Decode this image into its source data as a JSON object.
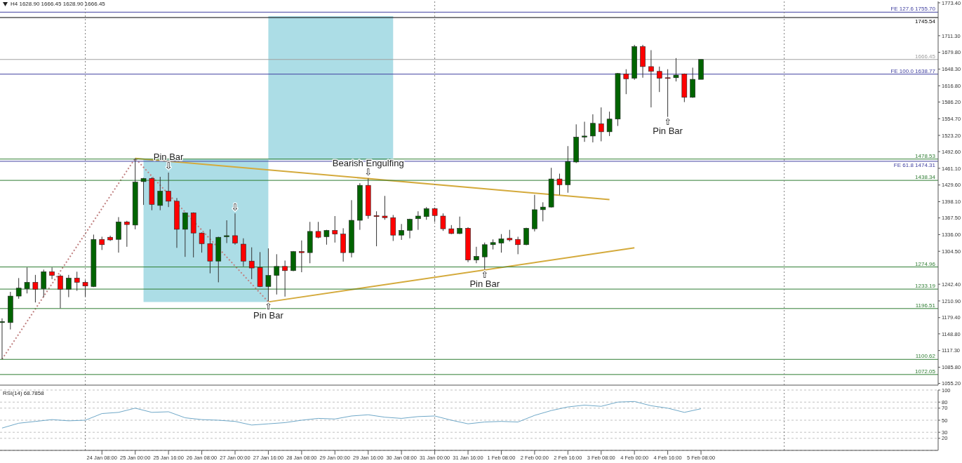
{
  "chart_data": [
    {
      "type": "candlestick",
      "title": "H4  1628.90 1666.45 1628.90 1666.45",
      "x": [
        "--01-22T08:00",
        "--01-22T12:00",
        "--01-22T16:00",
        "--01-22T20:00",
        "--01-23T00:00",
        "--01-23T04:00",
        "--01-23T08:00",
        "--01-23T12:00",
        "--01-23T16:00",
        "--01-23T20:00",
        "--01-24T00:00",
        "--01-24T04:00",
        "--01-24T08:00",
        "--01-24T12:00",
        "--01-24T16:00",
        "--01-24T20:00",
        "--01-25T00:00",
        "--01-25T04:00",
        "--01-25T08:00",
        "--01-25T12:00",
        "--01-25T16:00",
        "--01-25T20:00",
        "--01-26T00:00",
        "--01-26T04:00",
        "--01-26T08:00",
        "--01-26T12:00",
        "--01-26T16:00",
        "--01-26T20:00",
        "--01-27T00:00",
        "--01-27T04:00",
        "--01-27T08:00",
        "--01-27T12:00",
        "--01-27T16:00",
        "--01-27T20:00",
        "--01-28T00:00",
        "--01-28T04:00",
        "--01-28T08:00",
        "--01-28T12:00",
        "--01-28T16:00",
        "--01-28T20:00",
        "--01-29T00:00",
        "--01-29T04:00",
        "--01-29T08:00",
        "--01-29T12:00",
        "--01-29T16:00",
        "--01-29T20:00",
        "--01-30T00:00",
        "--01-30T04:00",
        "--01-30T08:00",
        "--01-30T12:00",
        "--01-30T16:00",
        "--01-30T20:00",
        "--01-31T00:00",
        "--01-31T04:00",
        "--01-31T08:00",
        "--01-31T12:00",
        "--01-31T16:00",
        "--01-31T20:00",
        "--02-01T00:00",
        "--02-01T04:00",
        "--02-01T08:00",
        "--02-01T12:00",
        "--02-01T16:00",
        "--02-01T20:00",
        "--02-02T00:00",
        "--02-02T04:00",
        "--02-02T08:00",
        "--02-02T12:00",
        "--02-02T16:00",
        "--02-02T20:00",
        "--02-03T00:00",
        "--02-03T04:00",
        "--02-03T08:00",
        "--02-03T12:00",
        "--02-03T16:00",
        "--02-03T20:00",
        "--02-04T00:00",
        "--02-04T04:00",
        "--02-04T08:00",
        "--02-04T12:00",
        "--02-04T16:00",
        "--02-04T20:00",
        "--02-05T00:00",
        "--02-05T04:00",
        "--02-05T08:00"
      ],
      "ohlc": [
        [
          1170,
          1178,
          1101,
          1172
        ],
        [
          1170,
          1228,
          1157,
          1220
        ],
        [
          1220,
          1254,
          1215,
          1235
        ],
        [
          1234,
          1274,
          1225,
          1246
        ],
        [
          1246,
          1260,
          1208,
          1233
        ],
        [
          1234,
          1270,
          1218,
          1266
        ],
        [
          1266,
          1274,
          1252,
          1259
        ],
        [
          1258,
          1261,
          1197,
          1233
        ],
        [
          1233,
          1260,
          1218,
          1254
        ],
        [
          1254,
          1266,
          1230,
          1246
        ],
        [
          1246,
          1250,
          1219,
          1239
        ],
        [
          1238,
          1336,
          1237,
          1327
        ],
        [
          1327,
          1332,
          1307,
          1317
        ],
        [
          1331,
          1334,
          1324,
          1326
        ],
        [
          1327,
          1369,
          1302,
          1360
        ],
        [
          1360,
          1362,
          1313,
          1355
        ],
        [
          1354,
          1480,
          1346,
          1435
        ],
        [
          1436,
          1443,
          1392,
          1442
        ],
        [
          1442,
          1444,
          1382,
          1393
        ],
        [
          1391,
          1445,
          1382,
          1418
        ],
        [
          1418,
          1453,
          1388,
          1399
        ],
        [
          1399,
          1405,
          1311,
          1346
        ],
        [
          1346,
          1378,
          1294,
          1377
        ],
        [
          1377,
          1378,
          1293,
          1339
        ],
        [
          1339,
          1340,
          1302,
          1319
        ],
        [
          1319,
          1346,
          1263,
          1286
        ],
        [
          1286,
          1332,
          1246,
          1331
        ],
        [
          1332,
          1363,
          1320,
          1334
        ],
        [
          1334,
          1376,
          1317,
          1320
        ],
        [
          1318,
          1329,
          1276,
          1286
        ],
        [
          1286,
          1312,
          1252,
          1273
        ],
        [
          1274,
          1303,
          1237,
          1238
        ],
        [
          1238,
          1310,
          1210,
          1259
        ],
        [
          1259,
          1299,
          1223,
          1276
        ],
        [
          1276,
          1287,
          1219,
          1268
        ],
        [
          1268,
          1305,
          1267,
          1304
        ],
        [
          1304,
          1325,
          1265,
          1302
        ],
        [
          1302,
          1360,
          1282,
          1342
        ],
        [
          1342,
          1360,
          1329,
          1331
        ],
        [
          1332,
          1345,
          1317,
          1344
        ],
        [
          1344,
          1371,
          1321,
          1337
        ],
        [
          1337,
          1348,
          1285,
          1302
        ],
        [
          1302,
          1401,
          1293,
          1363
        ],
        [
          1363,
          1433,
          1345,
          1429
        ],
        [
          1429,
          1442,
          1366,
          1372
        ],
        [
          1372,
          1380,
          1314,
          1370
        ],
        [
          1371,
          1409,
          1364,
          1368
        ],
        [
          1368,
          1373,
          1324,
          1335
        ],
        [
          1335,
          1356,
          1326,
          1344
        ],
        [
          1344,
          1366,
          1329,
          1365
        ],
        [
          1366,
          1380,
          1345,
          1371
        ],
        [
          1370,
          1388,
          1364,
          1385
        ],
        [
          1385,
          1387,
          1360,
          1372
        ],
        [
          1371,
          1376,
          1343,
          1347
        ],
        [
          1347,
          1354,
          1337,
          1338
        ],
        [
          1338,
          1370,
          1337,
          1348
        ],
        [
          1348,
          1350,
          1284,
          1288
        ],
        [
          1288,
          1313,
          1282,
          1295
        ],
        [
          1294,
          1321,
          1270,
          1317
        ],
        [
          1317,
          1327,
          1308,
          1321
        ],
        [
          1320,
          1337,
          1302,
          1328
        ],
        [
          1329,
          1345,
          1323,
          1326
        ],
        [
          1327,
          1332,
          1299,
          1317
        ],
        [
          1317,
          1349,
          1316,
          1348
        ],
        [
          1347,
          1411,
          1342,
          1383
        ],
        [
          1383,
          1397,
          1361,
          1388
        ],
        [
          1388,
          1462,
          1387,
          1441
        ],
        [
          1441,
          1451,
          1411,
          1430
        ],
        [
          1430,
          1503,
          1415,
          1474
        ],
        [
          1473,
          1544,
          1471,
          1520
        ],
        [
          1520,
          1549,
          1511,
          1522
        ],
        [
          1522,
          1563,
          1510,
          1546
        ],
        [
          1545,
          1576,
          1512,
          1530
        ],
        [
          1530,
          1568,
          1522,
          1554
        ],
        [
          1554,
          1641,
          1541,
          1640
        ],
        [
          1639,
          1648,
          1601,
          1630
        ],
        [
          1631,
          1694,
          1628,
          1691
        ],
        [
          1691,
          1694,
          1632,
          1653
        ],
        [
          1653,
          1684,
          1576,
          1644
        ],
        [
          1644,
          1653,
          1605,
          1631
        ],
        [
          1632,
          1648,
          1558,
          1631
        ],
        [
          1632,
          1669,
          1625,
          1637
        ],
        [
          1639,
          1640,
          1586,
          1595
        ],
        [
          1595,
          1651,
          1594,
          1629
        ],
        [
          1628.9,
          1666.45,
          1628.9,
          1666.45
        ]
      ],
      "colors": [
        "#006400",
        "#006400",
        "#006400",
        "#006400",
        "#ff0000",
        "#006400",
        "#ff0000",
        "#ff0000",
        "#006400",
        "#ff0000",
        "#ff0000",
        "#006400",
        "#ff0000",
        "#ff0000",
        "#006400",
        "#ff0000",
        "#006400",
        "#006400",
        "#ff0000",
        "#006400",
        "#ff0000",
        "#ff0000",
        "#006400",
        "#ff0000",
        "#ff0000",
        "#ff0000",
        "#006400",
        "#006400",
        "#ff0000",
        "#ff0000",
        "#ff0000",
        "#ff0000",
        "#006400",
        "#006400",
        "#ff0000",
        "#006400",
        "#ff0000",
        "#006400",
        "#ff0000",
        "#006400",
        "#ff0000",
        "#ff0000",
        "#006400",
        "#006400",
        "#ff0000",
        "#ff0000",
        "#ff0000",
        "#ff0000",
        "#006400",
        "#006400",
        "#006400",
        "#006400",
        "#ff0000",
        "#ff0000",
        "#ff0000",
        "#006400",
        "#ff0000",
        "#006400",
        "#006400",
        "#006400",
        "#006400",
        "#ff0000",
        "#ff0000",
        "#006400",
        "#006400",
        "#006400",
        "#006400",
        "#ff0000",
        "#006400",
        "#006400",
        "#006400",
        "#006400",
        "#ff0000",
        "#006400",
        "#006400",
        "#ff0000",
        "#006400",
        "#ff0000",
        "#ff0000",
        "#ff0000",
        "#ff0000",
        "#006400",
        "#ff0000",
        "#006400",
        "#006400"
      ],
      "series": [
        {
          "type": "line",
          "x": [
            "--01-25T04:00",
            "--01-27T16:00"
          ],
          "values": [
            1477,
            1477
          ],
          "upper": [
            1477,
            1477
          ],
          "lower": [
            1209,
            1209
          ],
          "color": "#acdde6",
          "line_style": "solid"
        },
        {
          "type": "line",
          "x": [
            "--01-27T16:00",
            "--01-30T04:00"
          ],
          "values": [
            1747,
            1747
          ],
          "upper": [
            1747,
            1747
          ],
          "lower": [
            1477,
            1477
          ],
          "color": "#acdde6",
          "line_style": "solid"
        },
        {
          "type": "line",
          "x": [
            "--01-22T08:00",
            "--01-25T00:00",
            "--01-27T16:00"
          ],
          "values": [
            1101,
            1480,
            1209
          ],
          "color": "#c08080",
          "line_style": "dotted"
        },
        {
          "type": "line",
          "x": [
            "--01-25T00:00",
            "--02-03T12:00"
          ],
          "values": [
            1480,
            1402
          ],
          "color": "#d4aa3c",
          "line_style": "solid"
        },
        {
          "type": "line",
          "x": [
            "--01-27T16:00",
            "--02-04T00:00"
          ],
          "values": [
            1209,
            1311
          ],
          "color": "#d4aa3c",
          "line_style": "solid"
        }
      ],
      "xlim": [
        "--01-22T07:00",
        "--02-10T02:00"
      ],
      "ylim": [
        1052,
        1776
      ],
      "yticks": [
        {
          "value": 1773.4,
          "label": "1773.40"
        },
        {
          "value": 1711.3,
          "label": "1711.30"
        },
        {
          "value": 1679.8,
          "label": "1679.80"
        },
        {
          "value": 1648.3,
          "label": "1648.30"
        },
        {
          "value": 1616.8,
          "label": "1616.80"
        },
        {
          "value": 1586.2,
          "label": "1586.20"
        },
        {
          "value": 1554.7,
          "label": "1554.70"
        },
        {
          "value": 1523.2,
          "label": "1523.20"
        },
        {
          "value": 1492.6,
          "label": "1492.60"
        },
        {
          "value": 1461.1,
          "label": "1461.10"
        },
        {
          "value": 1429.6,
          "label": "1429.60"
        },
        {
          "value": 1398.1,
          "label": "1398.10"
        },
        {
          "value": 1367.5,
          "label": "1367.50"
        },
        {
          "value": 1336,
          "label": "1336.00"
        },
        {
          "value": 1304.5,
          "label": "1304.50"
        },
        {
          "value": 1242.4,
          "label": "1242.40"
        },
        {
          "value": 1210.9,
          "label": "1210.90"
        },
        {
          "value": 1179.4,
          "label": "1179.40"
        },
        {
          "value": 1148.8,
          "label": "1148.80"
        },
        {
          "value": 1117.3,
          "label": "1117.30"
        },
        {
          "value": 1085.8,
          "label": "1085.80"
        },
        {
          "value": 1055.2,
          "label": "1055.20"
        }
      ],
      "tick_labels": "y",
      "ref_lines": [
        {
          "axis": "y",
          "value": 1755.7,
          "label": "FE 127.6 1755.70",
          "color": "#4040a0"
        },
        {
          "axis": "y",
          "value": 1745.54,
          "label": "1745.54",
          "color": "#000000"
        },
        {
          "axis": "y",
          "value": 1666.45,
          "label": "1666.45",
          "color": "#a0a0a0"
        },
        {
          "axis": "y",
          "value": 1638.77,
          "label": "FE 100.0 1638.77",
          "color": "#4040a0"
        },
        {
          "axis": "y",
          "value": 1478.53,
          "label": "1478.53",
          "color": "#2e7d32"
        },
        {
          "axis": "y",
          "value": 1474.31,
          "label": "FE 61.8 1474.31",
          "color": "#4040a0"
        },
        {
          "axis": "y",
          "value": 1438.34,
          "label": "1438.34",
          "color": "#2e7d32"
        },
        {
          "axis": "y",
          "value": 1274.96,
          "label": "1274.96",
          "color": "#2e7d32"
        },
        {
          "axis": "y",
          "value": 1233.19,
          "label": "1233.19",
          "color": "#2e7d32"
        },
        {
          "axis": "y",
          "value": 1196.51,
          "label": "1196.51",
          "color": "#2e7d32"
        },
        {
          "axis": "y",
          "value": 1100.62,
          "label": "1100.62",
          "color": "#2e7d32"
        },
        {
          "axis": "y",
          "value": 1072.05,
          "label": "1072.05",
          "color": "#2e7d32"
        },
        {
          "axis": "x",
          "value": "--01-24T00:00",
          "color": "#808080",
          "line_style": "dotted"
        },
        {
          "axis": "x",
          "value": "--01-31T00:00",
          "color": "#808080",
          "line_style": "dotted"
        },
        {
          "axis": "x",
          "value": "--02-07T00:00",
          "color": "#808080",
          "line_style": "dotted"
        }
      ],
      "annotations": [
        {
          "text": "⇩",
          "x": "--01-25T16:00",
          "y": 1453
        },
        {
          "text": "Pin Bar",
          "x": "--01-25T16:00",
          "y": 1453
        },
        {
          "text": "⇩",
          "x": "--01-27T00:00",
          "y": 1376
        },
        {
          "text": "⇧",
          "x": "--01-27T16:00",
          "y": 1210
        },
        {
          "text": "Pin Bar",
          "x": "--01-27T16:00",
          "y": 1210
        },
        {
          "text": "⇩",
          "x": "--01-29T16:00",
          "y": 1442
        },
        {
          "text": "Bearish Engulfing",
          "x": "--01-29T16:00",
          "y": 1442
        },
        {
          "text": "⇧",
          "x": "--02-01T00:00",
          "y": 1270
        },
        {
          "text": "Pin Bar",
          "x": "--02-01T00:00",
          "y": 1270
        },
        {
          "text": "⇧",
          "x": "--02-04T16:00",
          "y": 1558
        },
        {
          "text": "Pin Bar",
          "x": "--02-04T16:00",
          "y": 1558
        }
      ]
    },
    {
      "type": "line",
      "title": "RSI(14) 68.7858",
      "series": [
        {
          "color": "#6fa8c8",
          "x": [
            "--01-22T08:00",
            "--01-22T16:00",
            "--01-23T00:00",
            "--01-23T08:00",
            "--01-23T16:00",
            "--01-24T00:00",
            "--01-24T08:00",
            "--01-24T16:00",
            "--01-25T00:00",
            "--01-25T08:00",
            "--01-25T16:00",
            "--01-26T00:00",
            "--01-26T08:00",
            "--01-26T16:00",
            "--01-27T00:00",
            "--01-27T08:00",
            "--01-27T16:00",
            "--01-28T00:00",
            "--01-28T08:00",
            "--01-28T16:00",
            "--01-29T00:00",
            "--01-29T08:00",
            "--01-29T16:00",
            "--01-30T00:00",
            "--01-30T08:00",
            "--01-30T16:00",
            "--01-31T00:00",
            "--01-31T08:00",
            "--01-31T16:00",
            "--02-01T00:00",
            "--02-01T08:00",
            "--02-01T16:00",
            "--02-02T00:00",
            "--02-02T08:00",
            "--02-02T16:00",
            "--02-03T00:00",
            "--02-03T08:00",
            "--02-03T16:00",
            "--02-04T00:00",
            "--02-04T08:00",
            "--02-04T16:00",
            "--02-05T00:00",
            "--02-05T08:00"
          ],
          "values": [
            37,
            45,
            48,
            51,
            49,
            50,
            61,
            63,
            70,
            63,
            64,
            54,
            51,
            50,
            48,
            42,
            44,
            46,
            50,
            53,
            52,
            57,
            59,
            55,
            53,
            56,
            57,
            50,
            44,
            47,
            48,
            47,
            58,
            66,
            72,
            75,
            73,
            80,
            81,
            74,
            70,
            63,
            69
          ]
        }
      ],
      "xlim": [
        "--01-22T07:00",
        "--02-10T02:00"
      ],
      "xticks": [
        {
          "value": "--01-24T08:00",
          "label": "24 Jan 08:00"
        },
        {
          "value": "--01-25T00:00",
          "label": "25 Jan 00:00"
        },
        {
          "value": "--01-25T16:00",
          "label": "25 Jan 16:00"
        },
        {
          "value": "--01-26T08:00",
          "label": "26 Jan 08:00"
        },
        {
          "value": "--01-27T00:00",
          "label": "27 Jan 00:00"
        },
        {
          "value": "--01-27T16:00",
          "label": "27 Jan 16:00"
        },
        {
          "value": "--01-28T08:00",
          "label": "28 Jan 08:00"
        },
        {
          "value": "--01-29T00:00",
          "label": "29 Jan 00:00"
        },
        {
          "value": "--01-29T16:00",
          "label": "29 Jan 16:00"
        },
        {
          "value": "--01-30T08:00",
          "label": "30 Jan 08:00"
        },
        {
          "value": "--01-31T00:00",
          "label": "31 Jan 00:00"
        },
        {
          "value": "--01-31T16:00",
          "label": "31 Jan 16:00"
        },
        {
          "value": "--02-01T08:00",
          "label": "1 Feb 08:00"
        },
        {
          "value": "--02-02T00:00",
          "label": "2 Feb 00:00"
        },
        {
          "value": "--02-02T16:00",
          "label": "2 Feb 16:00"
        },
        {
          "value": "--02-03T08:00",
          "label": "3 Feb 08:00"
        },
        {
          "value": "--02-04T00:00",
          "label": "4 Feb 00:00"
        },
        {
          "value": "--02-04T16:00",
          "label": "4 Feb 16:00"
        },
        {
          "value": "--02-05T08:00",
          "label": "5 Feb 08:00"
        }
      ],
      "ylim": [
        0,
        100
      ],
      "yticks": [
        100,
        80,
        70,
        50,
        30,
        20
      ],
      "grid": "y",
      "ref_lines": [
        {
          "axis": "x",
          "value": "--01-24T00:00",
          "color": "#808080",
          "line_style": "dotted"
        },
        {
          "axis": "x",
          "value": "--01-31T00:00",
          "color": "#808080",
          "line_style": "dotted"
        },
        {
          "axis": "x",
          "value": "--02-07T00:00",
          "color": "#808080",
          "line_style": "dotted"
        }
      ]
    }
  ]
}
